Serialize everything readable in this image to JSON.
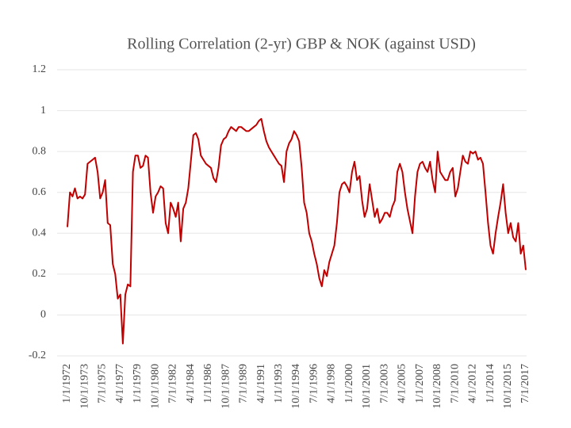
{
  "chart_data": {
    "type": "line",
    "title": "Rolling Correlation (2-yr) GBP & NOK (against USD)",
    "categories": [
      "1/1/1972",
      null,
      null,
      null,
      null,
      null,
      null,
      "10/1/1973",
      null,
      null,
      null,
      null,
      null,
      null,
      "7/1/1975",
      null,
      null,
      null,
      null,
      null,
      null,
      "4/1/1977",
      null,
      null,
      null,
      null,
      null,
      null,
      "1/1/1979",
      null,
      null,
      null,
      null,
      null,
      null,
      "10/1/1980",
      null,
      null,
      null,
      null,
      null,
      null,
      "7/1/1982",
      null,
      null,
      null,
      null,
      null,
      null,
      "4/1/1984",
      null,
      null,
      null,
      null,
      null,
      null,
      "1/1/1986",
      null,
      null,
      null,
      null,
      null,
      null,
      "10/1/1987",
      null,
      null,
      null,
      null,
      null,
      null,
      "7/1/1989",
      null,
      null,
      null,
      null,
      null,
      null,
      "4/1/1991",
      null,
      null,
      null,
      null,
      null,
      null,
      "1/1/1993",
      null,
      null,
      null,
      null,
      null,
      null,
      "10/1/1994",
      null,
      null,
      null,
      null,
      null,
      null,
      "7/1/1996",
      null,
      null,
      null,
      null,
      null,
      null,
      "4/1/1998",
      null,
      null,
      null,
      null,
      null,
      null,
      "1/1/2000",
      null,
      null,
      null,
      null,
      null,
      null,
      "10/1/2001",
      null,
      null,
      null,
      null,
      null,
      null,
      "7/1/2003",
      null,
      null,
      null,
      null,
      null,
      null,
      "4/1/2005",
      null,
      null,
      null,
      null,
      null,
      null,
      "1/1/2007",
      null,
      null,
      null,
      null,
      null,
      null,
      "10/1/2008",
      null,
      null,
      null,
      null,
      null,
      null,
      "7/1/2010",
      null,
      null,
      null,
      null,
      null,
      null,
      "4/1/2012",
      null,
      null,
      null,
      null,
      null,
      null,
      "1/1/2014",
      null,
      null,
      null,
      null,
      null,
      null,
      "10/1/2015",
      null,
      null,
      null,
      null,
      null,
      null,
      "7/1/2017"
    ],
    "values": [
      0.43,
      0.6,
      0.58,
      0.62,
      0.57,
      0.58,
      0.57,
      0.59,
      0.74,
      0.75,
      0.76,
      0.77,
      0.7,
      0.57,
      0.6,
      0.66,
      0.45,
      0.44,
      0.25,
      0.2,
      0.08,
      0.1,
      -0.14,
      0.1,
      0.15,
      0.14,
      0.7,
      0.78,
      0.78,
      0.72,
      0.73,
      0.78,
      0.77,
      0.6,
      0.5,
      0.58,
      0.6,
      0.63,
      0.62,
      0.45,
      0.4,
      0.55,
      0.52,
      0.48,
      0.55,
      0.36,
      0.52,
      0.55,
      0.62,
      0.75,
      0.88,
      0.89,
      0.86,
      0.78,
      0.76,
      0.74,
      0.73,
      0.72,
      0.67,
      0.65,
      0.72,
      0.83,
      0.86,
      0.87,
      0.9,
      0.92,
      0.91,
      0.9,
      0.92,
      0.92,
      0.91,
      0.9,
      0.9,
      0.91,
      0.92,
      0.93,
      0.95,
      0.96,
      0.9,
      0.85,
      0.82,
      0.8,
      0.78,
      0.76,
      0.74,
      0.73,
      0.65,
      0.8,
      0.84,
      0.86,
      0.9,
      0.88,
      0.85,
      0.72,
      0.55,
      0.5,
      0.4,
      0.36,
      0.3,
      0.25,
      0.18,
      0.14,
      0.22,
      0.19,
      0.26,
      0.3,
      0.34,
      0.45,
      0.6,
      0.64,
      0.65,
      0.63,
      0.6,
      0.7,
      0.75,
      0.66,
      0.68,
      0.56,
      0.48,
      0.52,
      0.64,
      0.56,
      0.48,
      0.52,
      0.45,
      0.47,
      0.5,
      0.5,
      0.48,
      0.53,
      0.56,
      0.7,
      0.74,
      0.7,
      0.6,
      0.52,
      0.46,
      0.4,
      0.58,
      0.7,
      0.74,
      0.75,
      0.72,
      0.7,
      0.75,
      0.66,
      0.6,
      0.8,
      0.7,
      0.68,
      0.66,
      0.66,
      0.7,
      0.72,
      0.58,
      0.62,
      0.7,
      0.78,
      0.75,
      0.74,
      0.8,
      0.79,
      0.8,
      0.76,
      0.77,
      0.74,
      0.6,
      0.45,
      0.34,
      0.3,
      0.4,
      0.48,
      0.55,
      0.64,
      0.5,
      0.4,
      0.45,
      0.38,
      0.36,
      0.45,
      0.3,
      0.34,
      0.22
    ],
    "color": "#c00000",
    "ylim": [
      -0.2,
      1.2
    ],
    "yticks": [
      -0.2,
      0,
      0.2,
      0.4,
      0.6,
      0.8,
      1,
      1.2
    ],
    "grid": true
  }
}
